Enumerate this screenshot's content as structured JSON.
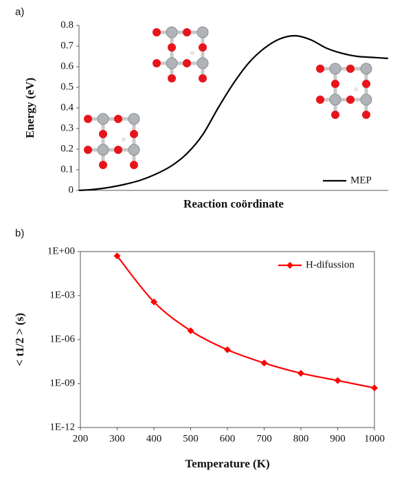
{
  "chart_data": [
    {
      "type": "line",
      "panel_label": "a)",
      "ylabel": "Energy (eV)",
      "xlabel": "Reaction coördinate",
      "categories": [
        null,
        null,
        null,
        null,
        null,
        null,
        null,
        null,
        null,
        null,
        null,
        null,
        null,
        null,
        null,
        null,
        null,
        null,
        null,
        null,
        null
      ],
      "series": [
        {
          "name": "MEP",
          "color": "#000000",
          "values": [
            0,
            0.005,
            0.015,
            0.03,
            0.05,
            0.08,
            0.12,
            0.18,
            0.27,
            0.4,
            0.52,
            0.62,
            0.69,
            0.735,
            0.75,
            0.73,
            0.69,
            0.665,
            0.65,
            0.645,
            0.64
          ]
        }
      ],
      "ylim": [
        0,
        0.8
      ],
      "yticks": [
        0,
        0.1,
        0.2,
        0.3,
        0.4,
        0.5,
        0.6,
        0.7,
        0.8
      ],
      "legend": "bottom-right"
    },
    {
      "type": "line",
      "panel_label": "b)",
      "ylabel": "< t1/2 > (s)",
      "xlabel": "Temperature (K)",
      "x": [
        300,
        400,
        500,
        600,
        700,
        800,
        900,
        1000
      ],
      "series": [
        {
          "name": "H-difussion",
          "color": "#ff0000",
          "marker": "diamond",
          "values": [
            0.5,
            0.00037,
            4e-06,
            2e-07,
            2.5e-08,
            5e-09,
            1.6e-09,
            5e-10
          ]
        }
      ],
      "xlim": [
        200,
        1000
      ],
      "xticks": [
        200,
        300,
        400,
        500,
        600,
        700,
        800,
        900,
        1000
      ],
      "ylim": [
        1e-12,
        1
      ],
      "yscale": "log",
      "yticks": [
        {
          "value": 1,
          "label": "1E+00"
        },
        {
          "value": 0.001,
          "label": "1E-03"
        },
        {
          "value": 1e-06,
          "label": "1E-06"
        },
        {
          "value": 1e-09,
          "label": "1E-09"
        },
        {
          "value": 1e-12,
          "label": "1E-12"
        }
      ],
      "legend": "top-right"
    }
  ]
}
